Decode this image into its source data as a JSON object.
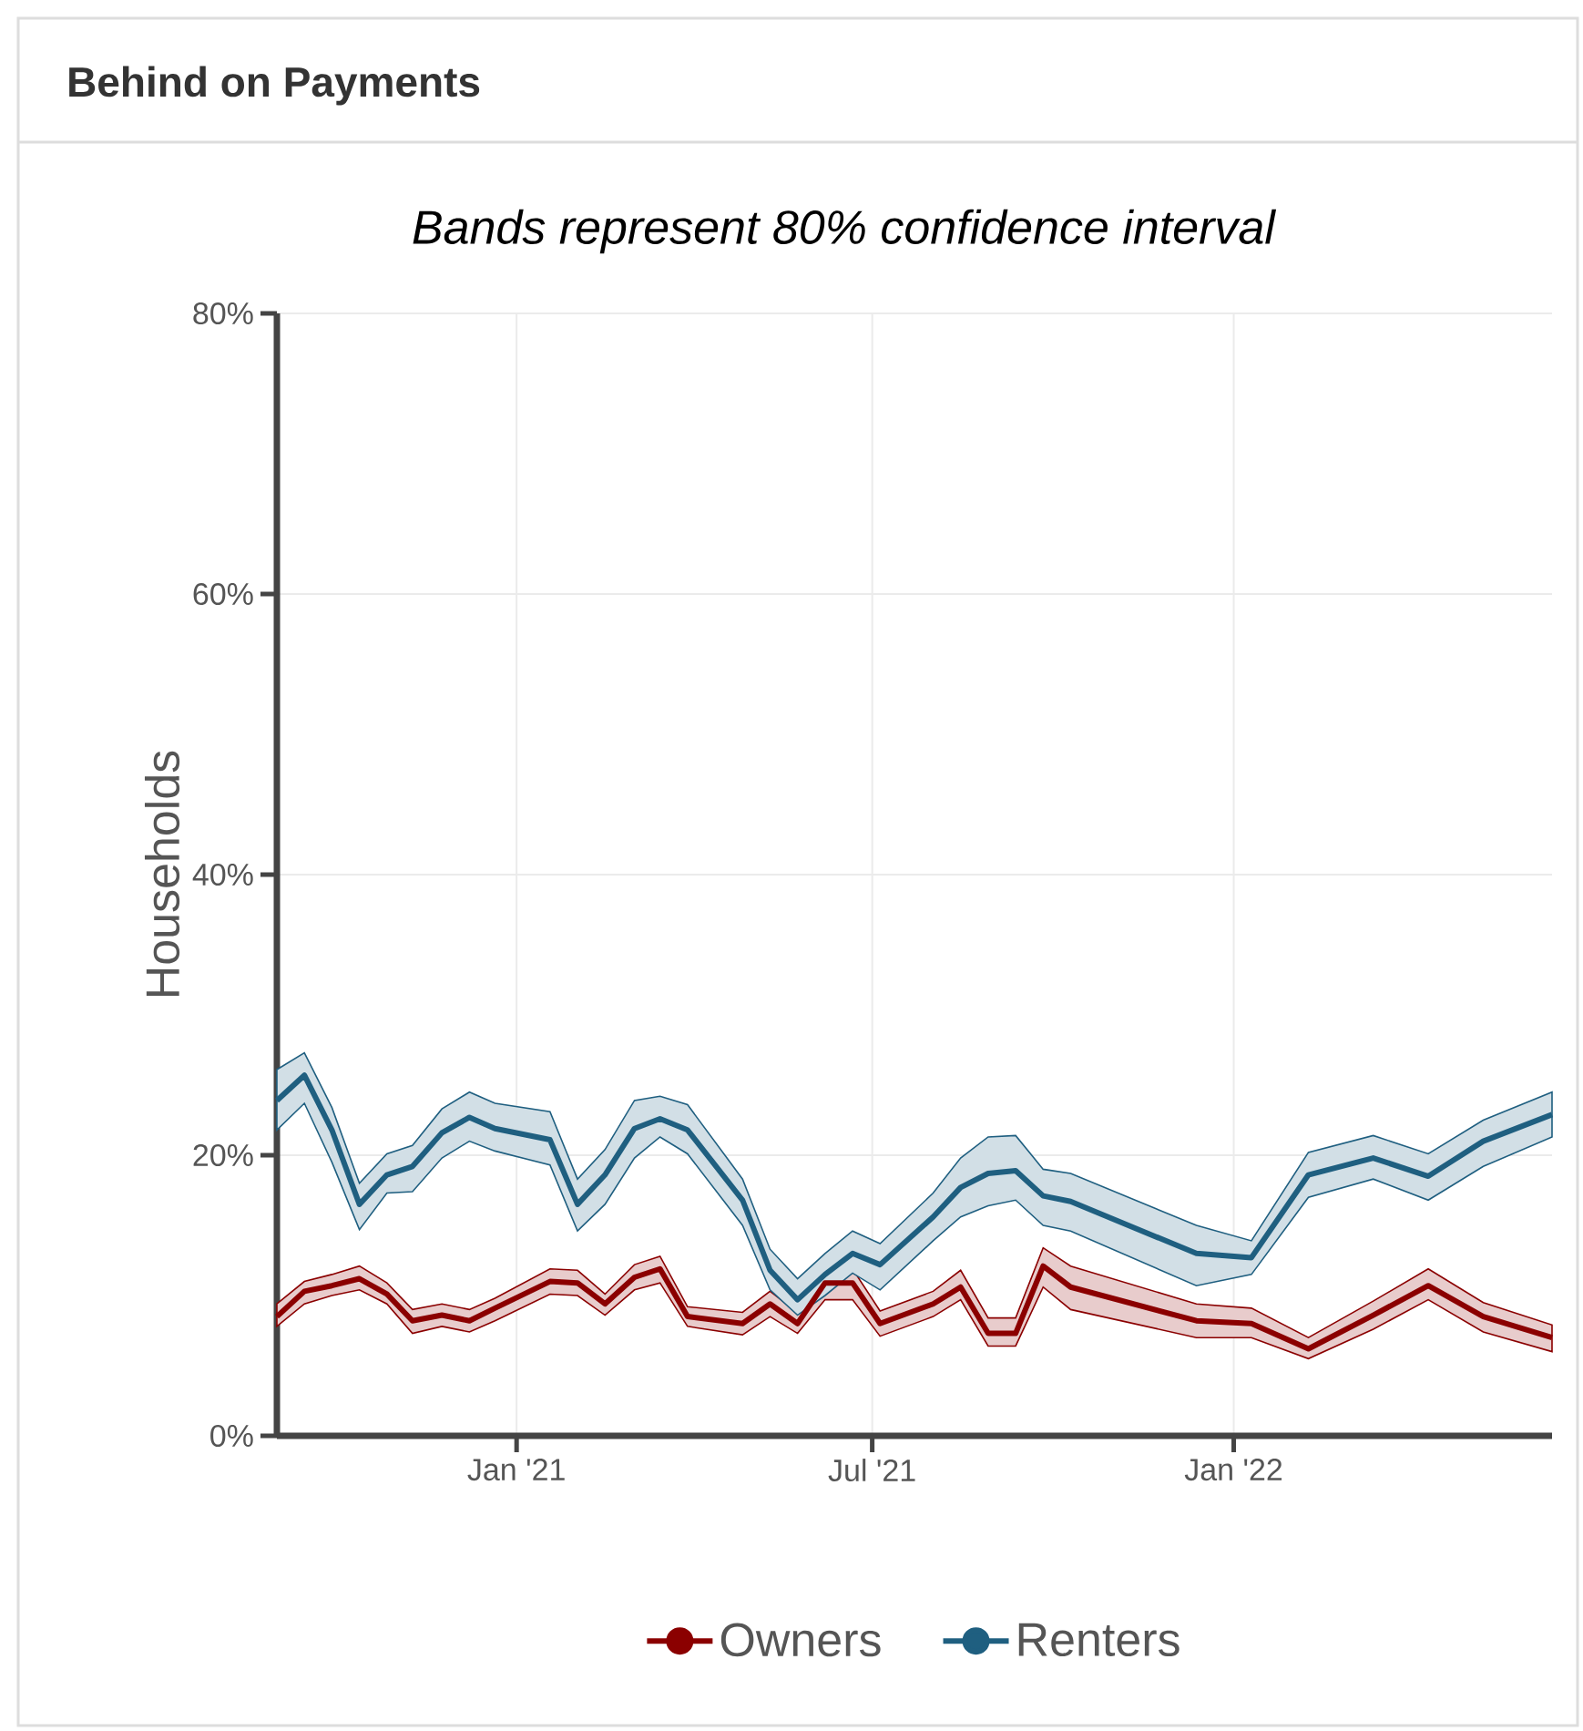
{
  "chart_data": {
    "type": "line",
    "title": "Behind on Payments",
    "subtitle": "Bands represent 80% confidence interval",
    "ylabel": "Households",
    "x": [
      "2020-09-01",
      "2020-09-15",
      "2020-09-29",
      "2020-10-13",
      "2020-10-27",
      "2020-11-09",
      "2020-11-24",
      "2020-12-08",
      "2020-12-21",
      "2021-01-18",
      "2021-02-01",
      "2021-02-15",
      "2021-03-02",
      "2021-03-15",
      "2021-03-29",
      "2021-04-26",
      "2021-05-10",
      "2021-05-24",
      "2021-06-07",
      "2021-06-21",
      "2021-07-05",
      "2021-08-01",
      "2021-08-15",
      "2021-08-29",
      "2021-09-12",
      "2021-09-26",
      "2021-10-10",
      "2021-12-13",
      "2022-01-10",
      "2022-02-08",
      "2022-03-13",
      "2022-04-10",
      "2022-05-08",
      "2022-06-12"
    ],
    "series": [
      {
        "name": "Owners",
        "color": "#8b0000",
        "values": [
          8.5,
          10.3,
          10.7,
          11.2,
          10.1,
          8.2,
          8.6,
          8.2,
          9.1,
          11.0,
          10.9,
          9.4,
          11.3,
          11.9,
          8.5,
          8.0,
          9.4,
          8.0,
          10.9,
          10.9,
          8.0,
          9.4,
          10.6,
          7.3,
          7.3,
          12.1,
          10.6,
          8.2,
          8.0,
          6.2,
          8.6,
          10.7,
          8.5,
          7.0
        ],
        "lower": [
          7.8,
          9.4,
          10.0,
          10.4,
          9.4,
          7.3,
          7.8,
          7.4,
          8.2,
          10.1,
          10.0,
          8.6,
          10.4,
          10.9,
          7.8,
          7.2,
          8.5,
          7.3,
          9.7,
          9.7,
          7.1,
          8.5,
          9.7,
          6.4,
          6.4,
          10.6,
          9.0,
          7.0,
          7.0,
          5.5,
          7.6,
          9.7,
          7.4,
          6.0
        ],
        "upper": [
          9.4,
          11.0,
          11.5,
          12.1,
          10.9,
          9.0,
          9.4,
          9.0,
          9.8,
          11.9,
          11.8,
          10.1,
          12.2,
          12.8,
          9.2,
          8.8,
          10.3,
          8.8,
          11.9,
          11.9,
          8.9,
          10.3,
          11.8,
          8.4,
          8.4,
          13.4,
          12.1,
          9.4,
          9.1,
          7.0,
          9.6,
          11.9,
          9.5,
          7.9
        ]
      },
      {
        "name": "Renters",
        "color": "#1f5f80",
        "values": [
          23.9,
          25.7,
          21.8,
          16.5,
          18.6,
          19.2,
          21.6,
          22.7,
          21.9,
          21.1,
          16.5,
          18.6,
          21.9,
          22.6,
          21.8,
          16.8,
          11.8,
          9.7,
          11.5,
          13.0,
          12.2,
          15.6,
          17.7,
          18.7,
          18.9,
          17.1,
          16.7,
          13.0,
          12.7,
          18.6,
          19.8,
          18.5,
          21.0,
          22.9
        ],
        "lower": [
          21.8,
          23.7,
          19.5,
          14.7,
          17.3,
          17.4,
          19.8,
          21.0,
          20.3,
          19.3,
          14.6,
          16.5,
          19.8,
          21.3,
          20.1,
          15.0,
          10.4,
          8.6,
          10.0,
          11.6,
          10.4,
          13.9,
          15.6,
          16.4,
          16.8,
          15.0,
          14.6,
          10.7,
          11.5,
          17.0,
          18.3,
          16.8,
          19.2,
          21.3
        ],
        "upper": [
          26.1,
          27.3,
          23.4,
          18.0,
          20.1,
          20.7,
          23.3,
          24.5,
          23.7,
          23.1,
          18.3,
          20.4,
          23.9,
          24.2,
          23.6,
          18.3,
          13.3,
          11.2,
          13.0,
          14.6,
          13.7,
          17.3,
          19.8,
          21.3,
          21.4,
          19.0,
          18.7,
          15.0,
          13.9,
          20.2,
          21.4,
          20.1,
          22.5,
          24.5
        ]
      }
    ],
    "xlim": [
      "2020-09-01",
      "2022-06-12"
    ],
    "xticks": [
      {
        "value": "2021-01-01",
        "label": "Jan '21"
      },
      {
        "value": "2021-07-01",
        "label": "Jul '21"
      },
      {
        "value": "2022-01-01",
        "label": "Jan '22"
      }
    ],
    "ylim": [
      0,
      80
    ],
    "yticks": [
      {
        "value": 0,
        "label": "0%"
      },
      {
        "value": 20,
        "label": "20%"
      },
      {
        "value": 40,
        "label": "40%"
      },
      {
        "value": 60,
        "label": "60%"
      },
      {
        "value": 80,
        "label": "80%"
      }
    ],
    "grid": true,
    "legend": "bottom",
    "line_style": "solid"
  }
}
